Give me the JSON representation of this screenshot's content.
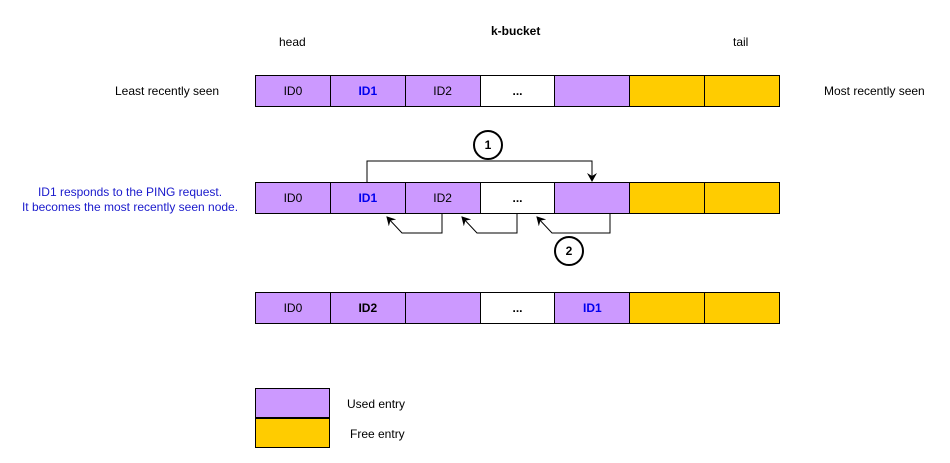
{
  "title": "k-bucket",
  "head_label": "head",
  "tail_label": "tail",
  "left_label": "Least recently seen",
  "right_label": "Most recently seen",
  "note": [
    "ID1 responds to the PING request.",
    "It becomes the most recently seen node."
  ],
  "rows": [
    [
      {
        "text": "ID0",
        "kind": "used",
        "style": "normal"
      },
      {
        "text": "ID1",
        "kind": "used",
        "style": "highlight"
      },
      {
        "text": "ID2",
        "kind": "used",
        "style": "normal"
      },
      {
        "text": "...",
        "kind": "empty",
        "style": "bold"
      },
      {
        "text": "",
        "kind": "used",
        "style": "normal"
      },
      {
        "text": "",
        "kind": "free",
        "style": "normal"
      },
      {
        "text": "",
        "kind": "free",
        "style": "normal"
      }
    ],
    [
      {
        "text": "ID0",
        "kind": "used",
        "style": "normal"
      },
      {
        "text": "ID1",
        "kind": "used",
        "style": "highlight"
      },
      {
        "text": "ID2",
        "kind": "used",
        "style": "normal"
      },
      {
        "text": "...",
        "kind": "empty",
        "style": "bold"
      },
      {
        "text": "",
        "kind": "used",
        "style": "normal"
      },
      {
        "text": "",
        "kind": "free",
        "style": "normal"
      },
      {
        "text": "",
        "kind": "free",
        "style": "normal"
      }
    ],
    [
      {
        "text": "ID0",
        "kind": "used",
        "style": "normal"
      },
      {
        "text": "ID2",
        "kind": "used",
        "style": "bold"
      },
      {
        "text": "",
        "kind": "used",
        "style": "normal"
      },
      {
        "text": "...",
        "kind": "empty",
        "style": "bold"
      },
      {
        "text": "ID1",
        "kind": "used",
        "style": "highlight"
      },
      {
        "text": "",
        "kind": "free",
        "style": "normal"
      },
      {
        "text": "",
        "kind": "free",
        "style": "normal"
      }
    ]
  ],
  "steps": [
    "1",
    "2"
  ],
  "legend": [
    {
      "label": "Used entry",
      "color": "#cc99ff"
    },
    {
      "label": "Free entry",
      "color": "#ffcc00"
    }
  ],
  "colors": {
    "used": "#cc99ff",
    "free": "#ffcc00",
    "highlight_text": "#0000ee",
    "note_text": "#1a1acc"
  }
}
